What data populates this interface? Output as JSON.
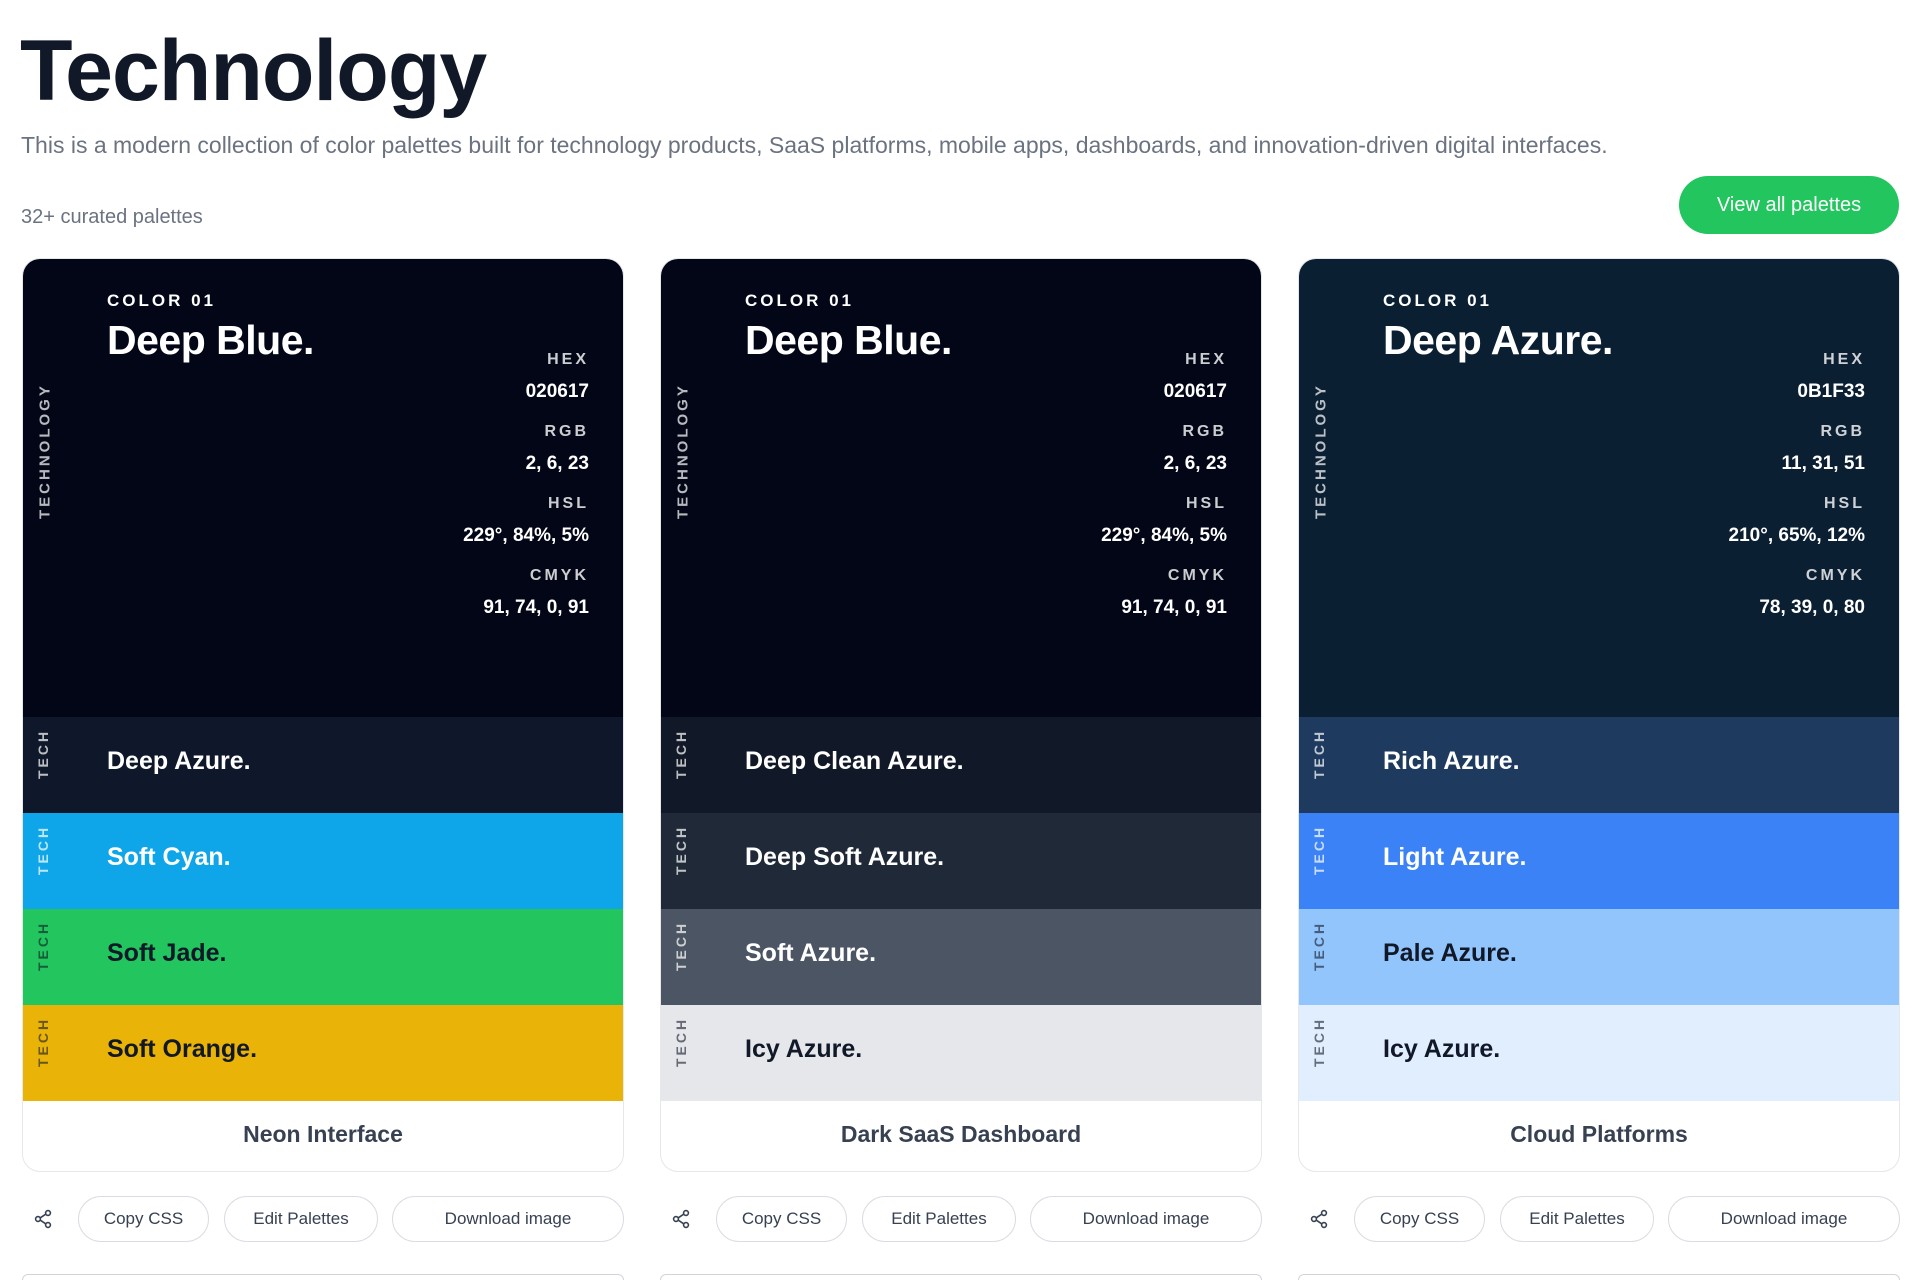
{
  "header": {
    "title": "Technology",
    "description": "This is a modern collection of color palettes built for technology products, SaaS platforms, mobile apps, dashboards, and innovation-driven digital interfaces.",
    "count": "32+ curated palettes",
    "view_all_label": "View all palettes",
    "view_all_color": "#22c55e"
  },
  "labels": {
    "spec_hex": "HEX",
    "spec_rgb": "RGB",
    "spec_hsl": "HSL",
    "spec_cmyk": "CMYK",
    "vertical_main": "TECHNOLOGY",
    "vertical_small": "TECH",
    "share_icon": "share-icon"
  },
  "cards": [
    {
      "main": {
        "number": "COLOR 01",
        "name": "Deep Blue.",
        "hex": "020617",
        "rgb": "2, 6, 23",
        "hsl": "229°, 84%, 5%",
        "cmyk": "91, 74, 0, 91",
        "color": "#020617"
      },
      "swatches": [
        {
          "name": "Deep Azure.",
          "color": "#0f172a",
          "text_color": "#ffffff"
        },
        {
          "name": "Soft Cyan.",
          "color": "#0ea5e9",
          "text_color": "#ffffff"
        },
        {
          "name": "Soft Jade.",
          "color": "#22c55e",
          "text_color": "#111827"
        },
        {
          "name": "Soft Orange.",
          "color": "#eab308",
          "text_color": "#111827"
        }
      ],
      "title": "Neon Interface",
      "actions": {
        "copy": "Copy CSS",
        "edit": "Edit Palettes",
        "download": "Download image"
      }
    },
    {
      "main": {
        "number": "COLOR 01",
        "name": "Deep Blue.",
        "hex": "020617",
        "rgb": "2, 6, 23",
        "hsl": "229°, 84%, 5%",
        "cmyk": "91, 74, 0, 91",
        "color": "#020617"
      },
      "swatches": [
        {
          "name": "Deep Clean Azure.",
          "color": "#111827",
          "text_color": "#ffffff"
        },
        {
          "name": "Deep Soft Azure.",
          "color": "#1f2937",
          "text_color": "#ffffff"
        },
        {
          "name": "Soft Azure.",
          "color": "#4b5563",
          "text_color": "#ffffff"
        },
        {
          "name": "Icy Azure.",
          "color": "#e5e7eb",
          "text_color": "#111827"
        }
      ],
      "title": "Dark SaaS Dashboard",
      "actions": {
        "copy": "Copy CSS",
        "edit": "Edit Palettes",
        "download": "Download image"
      }
    },
    {
      "main": {
        "number": "COLOR 01",
        "name": "Deep Azure.",
        "hex": "0B1F33",
        "rgb": "11, 31, 51",
        "hsl": "210°, 65%, 12%",
        "cmyk": "78, 39, 0, 80",
        "color": "#0b1f33"
      },
      "swatches": [
        {
          "name": "Rich Azure.",
          "color": "#1e3a5f",
          "text_color": "#ffffff"
        },
        {
          "name": "Light Azure.",
          "color": "#3b82f6",
          "text_color": "#ffffff"
        },
        {
          "name": "Pale Azure.",
          "color": "#93c5fd",
          "text_color": "#111827"
        },
        {
          "name": "Icy Azure.",
          "color": "#e0eefe",
          "text_color": "#111827"
        }
      ],
      "title": "Cloud Platforms",
      "actions": {
        "copy": "Copy CSS",
        "edit": "Edit Palettes",
        "download": "Download image"
      }
    }
  ]
}
